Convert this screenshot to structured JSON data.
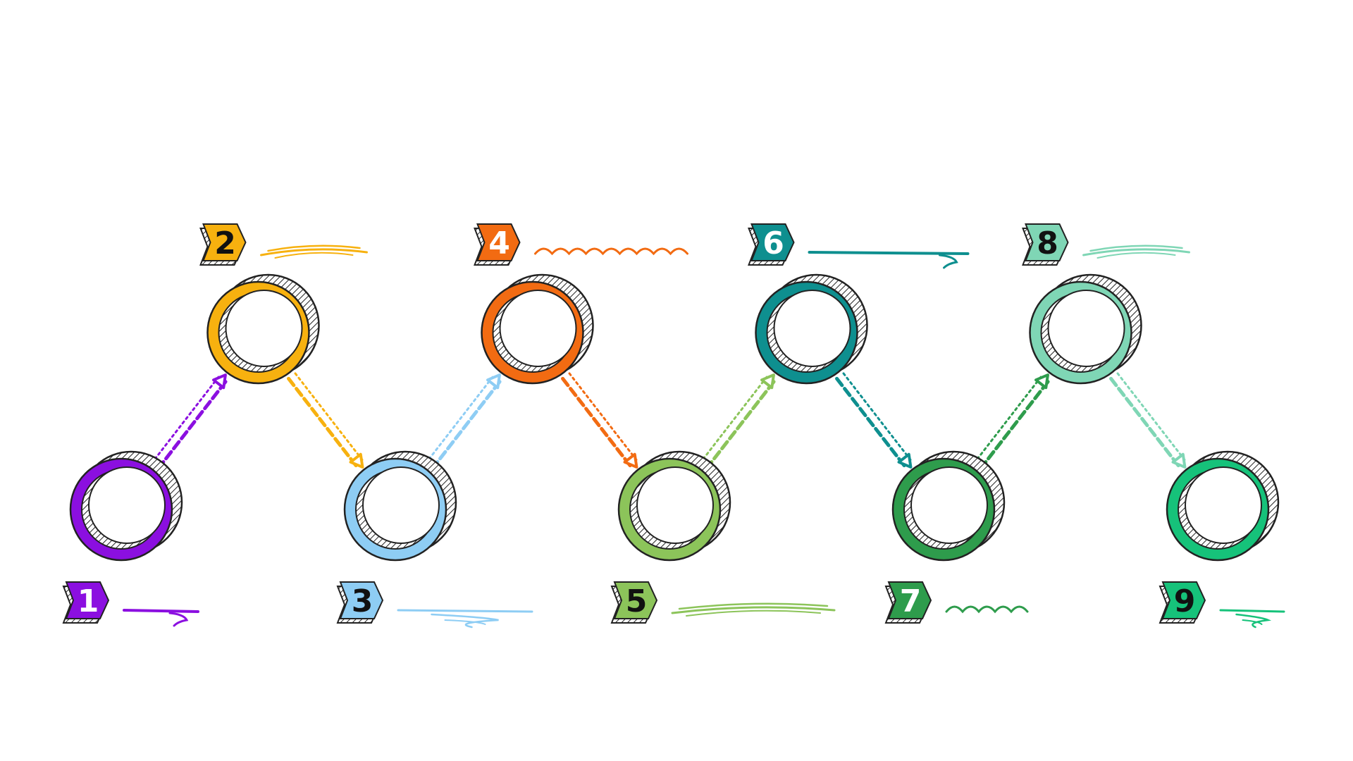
{
  "diagram": {
    "steps": [
      {
        "number": "1",
        "color": "#8B0FE0",
        "number_color": "#ffffff",
        "row": "bottom",
        "scribble": "hook"
      },
      {
        "number": "2",
        "color": "#F7B10F",
        "number_color": "#111111",
        "row": "top",
        "scribble": "strokes"
      },
      {
        "number": "3",
        "color": "#8ECDF4",
        "number_color": "#111111",
        "row": "bottom",
        "scribble": "swirl"
      },
      {
        "number": "4",
        "color": "#F26B12",
        "number_color": "#ffffff",
        "row": "top",
        "scribble": "wave"
      },
      {
        "number": "5",
        "color": "#8CC45A",
        "number_color": "#111111",
        "row": "bottom",
        "scribble": "strokes"
      },
      {
        "number": "6",
        "color": "#0E8F8F",
        "number_color": "#ffffff",
        "row": "top",
        "scribble": "hook"
      },
      {
        "number": "7",
        "color": "#2E9C4C",
        "number_color": "#ffffff",
        "row": "bottom",
        "scribble": "wave"
      },
      {
        "number": "8",
        "color": "#7FD6B5",
        "number_color": "#111111",
        "row": "top",
        "scribble": "strokes"
      },
      {
        "number": "9",
        "color": "#16C27A",
        "number_color": "#111111",
        "row": "bottom",
        "scribble": "swirl"
      }
    ]
  }
}
